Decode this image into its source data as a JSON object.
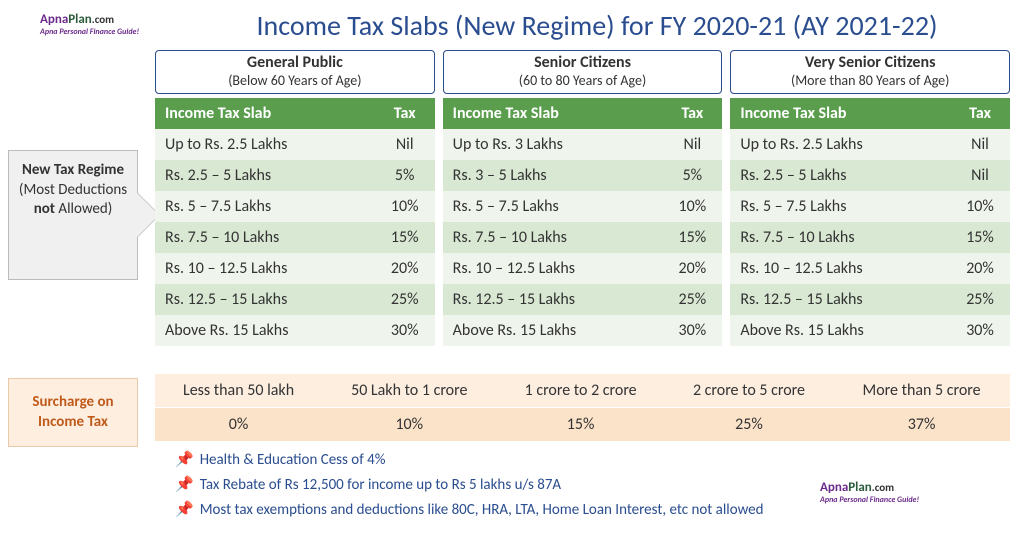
{
  "title": "Income Tax Slabs (New Regime) for FY 2020-21 (AY 2021-22)",
  "logo": {
    "part1": "Apna",
    "part2": "Plan",
    "part3": ".com",
    "tagline": "Apna Personal Finance Guide!"
  },
  "side_arrow": {
    "line1": "New Tax Regime",
    "line2": "(Most Deductions",
    "line3_bold": "not",
    "line3_rest": " Allowed)"
  },
  "surcharge_label": "Surcharge on Income Tax",
  "colors": {
    "title": "#2a4d8f",
    "header_bg": "#5a9e4d",
    "row_alt_light": "#eff5ec",
    "row_alt_dark": "#d9e8d3",
    "surcharge_row1": "#fdeee0",
    "surcharge_row2": "#fbe3c9",
    "surcharge_text": "#c05a1a"
  },
  "groups": [
    {
      "title": "General Public",
      "subtitle": "(Below 60 Years of Age)",
      "col_slab": "Income Tax Slab",
      "col_tax": "Tax",
      "rows": [
        {
          "slab": "Up to Rs. 2.5 Lakhs",
          "tax": "Nil"
        },
        {
          "slab": "Rs. 2.5 – 5 Lakhs",
          "tax": "5%"
        },
        {
          "slab": "Rs. 5 – 7.5 Lakhs",
          "tax": "10%"
        },
        {
          "slab": "Rs. 7.5 – 10 Lakhs",
          "tax": "15%"
        },
        {
          "slab": "Rs. 10 – 12.5 Lakhs",
          "tax": "20%"
        },
        {
          "slab": "Rs. 12.5 – 15 Lakhs",
          "tax": "25%"
        },
        {
          "slab": "Above Rs. 15 Lakhs",
          "tax": "30%"
        }
      ]
    },
    {
      "title": "Senior Citizens",
      "subtitle": "(60 to 80 Years of Age)",
      "col_slab": "Income Tax Slab",
      "col_tax": "Tax",
      "rows": [
        {
          "slab": "Up to Rs. 3 Lakhs",
          "tax": "Nil"
        },
        {
          "slab": "Rs. 3 – 5 Lakhs",
          "tax": "5%"
        },
        {
          "slab": "Rs. 5 – 7.5 Lakhs",
          "tax": "10%"
        },
        {
          "slab": "Rs. 7.5 – 10 Lakhs",
          "tax": "15%"
        },
        {
          "slab": "Rs. 10 – 12.5 Lakhs",
          "tax": "20%"
        },
        {
          "slab": "Rs. 12.5 – 15 Lakhs",
          "tax": "25%"
        },
        {
          "slab": "Above Rs. 15 Lakhs",
          "tax": "30%"
        }
      ]
    },
    {
      "title": "Very Senior Citizens",
      "subtitle": "(More than 80 Years of Age)",
      "col_slab": "Income Tax Slab",
      "col_tax": "Tax",
      "rows": [
        {
          "slab": "Up to Rs. 2.5 Lakhs",
          "tax": "Nil"
        },
        {
          "slab": "Rs. 2.5 – 5 Lakhs",
          "tax": "Nil"
        },
        {
          "slab": "Rs. 5 – 7.5 Lakhs",
          "tax": "10%"
        },
        {
          "slab": "Rs. 7.5 – 10 Lakhs",
          "tax": "15%"
        },
        {
          "slab": "Rs. 10 – 12.5 Lakhs",
          "tax": "20%"
        },
        {
          "slab": "Rs. 12.5 – 15 Lakhs",
          "tax": "25%"
        },
        {
          "slab": "Above Rs. 15 Lakhs",
          "tax": "30%"
        }
      ]
    }
  ],
  "surcharge": {
    "brackets": [
      "Less than 50 lakh",
      "50 Lakh to 1 crore",
      "1 crore to 2 crore",
      "2 crore to 5 crore",
      "More than 5 crore"
    ],
    "rates": [
      "0%",
      "10%",
      "15%",
      "25%",
      "37%"
    ]
  },
  "notes": [
    "Health & Education Cess of 4%",
    "Tax Rebate of Rs 12,500 for income up to Rs 5 lakhs u/s 87A",
    "Most tax exemptions and deductions like 80C, HRA, LTA, Home Loan Interest, etc not allowed"
  ],
  "pin_glyph": "📌"
}
